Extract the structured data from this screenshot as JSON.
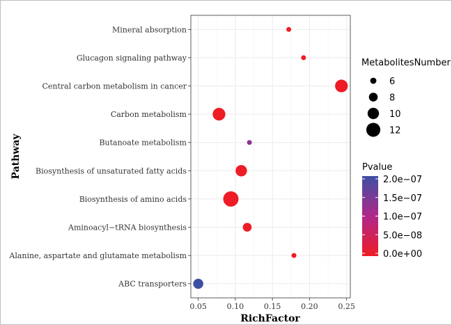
{
  "chart_data": {
    "type": "scatter",
    "title": "",
    "xlabel": "RichFactor",
    "ylabel": "Pathway",
    "xlim": [
      0.04,
      0.255
    ],
    "x_ticks": [
      "0.05",
      "0.10",
      "0.15",
      "0.20",
      "0.25"
    ],
    "x_tick_values": [
      0.05,
      0.1,
      0.15,
      0.2,
      0.25
    ],
    "grid": true,
    "categories": [
      "ABC transporters",
      "Alanine, aspartate and glutamate metabolism",
      "Aminoacyl−tRNA biosynthesis",
      "Biosynthesis of amino acids",
      "Biosynthesis of unsaturated fatty acids",
      "Butanoate metabolism",
      "Carbon metabolism",
      "Central carbon metabolism in cancer",
      "Glucagon signaling pathway",
      "Mineral absorption"
    ],
    "points": [
      {
        "pathway": "ABC transporters",
        "x": 0.05,
        "size": 9,
        "pvalue": 2e-07
      },
      {
        "pathway": "Alanine, aspartate and glutamate metabolism",
        "x": 0.179,
        "size": 5,
        "pvalue": 0.0
      },
      {
        "pathway": "Aminoacyl−tRNA biosynthesis",
        "x": 0.116,
        "size": 8,
        "pvalue": 0.0
      },
      {
        "pathway": "Biosynthesis of amino acids",
        "x": 0.094,
        "size": 13,
        "pvalue": 0.0
      },
      {
        "pathway": "Biosynthesis of unsaturated fatty acids",
        "x": 0.108,
        "size": 10,
        "pvalue": 0.0
      },
      {
        "pathway": "Butanoate metabolism",
        "x": 0.119,
        "size": 5,
        "pvalue": 1.3e-07
      },
      {
        "pathway": "Carbon metabolism",
        "x": 0.078,
        "size": 11,
        "pvalue": 0.0
      },
      {
        "pathway": "Central carbon metabolism in cancer",
        "x": 0.243,
        "size": 11,
        "pvalue": 0.0
      },
      {
        "pathway": "Glucagon signaling pathway",
        "x": 0.192,
        "size": 5,
        "pvalue": 0.0
      },
      {
        "pathway": "Mineral absorption",
        "x": 0.172,
        "size": 5,
        "pvalue": 0.0
      }
    ],
    "size_legend": {
      "title": "MetabolitesNumber",
      "values": [
        6,
        8,
        10,
        12
      ]
    },
    "color_legend": {
      "title": "Pvalue",
      "labels": [
        "2.0e−07",
        "1.5e−07",
        "1.0e−07",
        "5.0e−08",
        "0.0e+00"
      ],
      "values": [
        2e-07,
        1.5e-07,
        1e-07,
        5e-08,
        0.0
      ],
      "low_color": "#ee1c25",
      "mid_color": "#b0278a",
      "high_color": "#3e4fa3"
    },
    "legend_position": "right",
    "panel_background": "#ffffff",
    "grid_color": "#ebebeb",
    "panel_border_color": "#333333"
  }
}
